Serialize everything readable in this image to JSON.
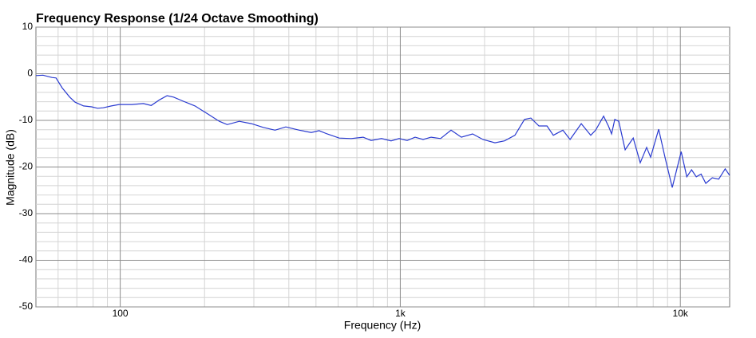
{
  "chart_data": {
    "type": "line",
    "title": "Frequency Response (1/24 Octave Smoothing)",
    "x_label": "Frequency (Hz)",
    "y_label": "Magnitude (dB)",
    "x_scale": "log",
    "xlim": [
      50,
      15000
    ],
    "ylim": [
      -50,
      10
    ],
    "xticks": [
      {
        "value": 100,
        "label": "100"
      },
      {
        "value": 1000,
        "label": "1k"
      },
      {
        "value": 10000,
        "label": "10k"
      }
    ],
    "yticks": [
      -50,
      -40,
      -30,
      -20,
      -10,
      0,
      10
    ],
    "x_minor_ticks": [
      60,
      70,
      80,
      90,
      200,
      300,
      400,
      500,
      600,
      700,
      800,
      900,
      2000,
      3000,
      4000,
      5000,
      6000,
      7000,
      8000,
      9000
    ],
    "y_minor_ticks": [
      -48,
      -46,
      -44,
      -42,
      -38,
      -36,
      -34,
      -32,
      -28,
      -26,
      -24,
      -22,
      -18,
      -16,
      -14,
      -12,
      -8,
      -6,
      -4,
      -2,
      2,
      4,
      6,
      8
    ],
    "grid": true,
    "x": [
      50,
      53,
      57,
      59,
      62,
      66,
      69,
      74,
      79,
      83,
      87,
      93,
      99,
      110,
      121,
      129,
      138,
      147,
      155,
      168,
      185,
      205,
      226,
      241,
      266,
      294,
      324,
      357,
      390,
      436,
      481,
      513,
      548,
      605,
      668,
      737,
      787,
      857,
      927,
      991,
      1058,
      1130,
      1206,
      1288,
      1393,
      1518,
      1652,
      1812,
      1974,
      2178,
      2356,
      2566,
      2777,
      2926,
      3126,
      3340,
      3518,
      3807,
      4040,
      4427,
      4788,
      4984,
      5322,
      5535,
      5683,
      5833,
      6026,
      6351,
      6787,
      7194,
      7581,
      7831,
      8368,
      8823,
      9360,
      10069,
      10545,
      10965,
      11403,
      11856,
      12330,
      13002,
      13710,
      14456,
      15000
    ],
    "series": [
      {
        "name": "Magnitude",
        "color": "#2a3bd0",
        "values": [
          -0.4,
          -0.3,
          -0.8,
          -0.9,
          -3.0,
          -5.0,
          -6.1,
          -6.9,
          -7.1,
          -7.4,
          -7.3,
          -6.9,
          -6.6,
          -6.6,
          -6.4,
          -6.8,
          -5.6,
          -4.7,
          -5.0,
          -5.9,
          -6.9,
          -8.6,
          -10.2,
          -10.9,
          -10.2,
          -10.7,
          -11.5,
          -12.1,
          -11.4,
          -12.1,
          -12.6,
          -12.2,
          -12.9,
          -13.8,
          -13.9,
          -13.6,
          -14.3,
          -13.9,
          -14.4,
          -13.9,
          -14.3,
          -13.6,
          -14.1,
          -13.6,
          -13.9,
          -12.1,
          -13.6,
          -12.9,
          -14.1,
          -14.8,
          -14.4,
          -13.2,
          -9.8,
          -9.5,
          -11.2,
          -11.2,
          -13.2,
          -12.1,
          -14.1,
          -10.7,
          -13.2,
          -12.1,
          -9.1,
          -11.2,
          -12.9,
          -9.8,
          -10.2,
          -16.3,
          -13.8,
          -19.1,
          -15.8,
          -17.9,
          -11.9,
          -18.0,
          -24.4,
          -16.7,
          -22.1,
          -20.6,
          -22.1,
          -21.5,
          -23.5,
          -22.3,
          -22.6,
          -20.4,
          -21.8
        ]
      }
    ]
  }
}
